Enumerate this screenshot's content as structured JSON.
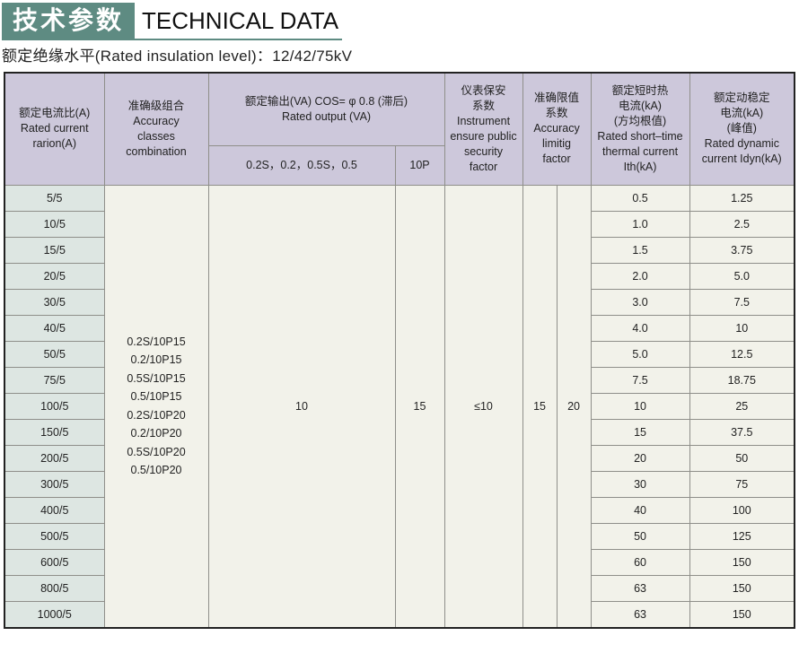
{
  "title": {
    "cn": "技术参数",
    "en": "TECHNICAL DATA"
  },
  "subtitle": "额定绝缘水平(Rated insulation level)：12/42/75kV",
  "colors": {
    "title_bg": "#5e8b82",
    "header_bg": "#cdc8db",
    "ratio_bg": "#dde6e2",
    "body_bg": "#f2f2ea"
  },
  "headers": {
    "ratio": [
      "额定电流比(A)",
      "Rated current",
      "rarion(A)"
    ],
    "accuracy": [
      "准确级组合",
      "Accuracy",
      "classes",
      "combination"
    ],
    "output": [
      "额定输出(VA) COS= φ 0.8 (滞后)",
      "Rated output (VA)"
    ],
    "output_sub1": "0.2S，0.2，0.5S，0.5",
    "output_sub2": "10P",
    "isf": [
      "仪表保安",
      "系数",
      "Instrument",
      "ensure public",
      "security",
      "factor"
    ],
    "alf": [
      "准确限值",
      "系数",
      "Accuracy",
      "limitig",
      "factor"
    ],
    "ith": [
      "额定短时热",
      "电流(kA)",
      "(方均根值)",
      "Rated short–time",
      "thermal current",
      "Ith(kA)"
    ],
    "idyn": [
      "额定动稳定",
      "电流(kA)",
      "(峰值)",
      "Rated dynamic",
      "current Idyn(kA)"
    ]
  },
  "merged": {
    "accuracy": [
      "0.2S/10P15",
      "0.2/10P15",
      "0.5S/10P15",
      "0.5/10P15",
      "0.2S/10P20",
      "0.2/10P20",
      "0.5S/10P20",
      "0.5/10P20"
    ],
    "output1": "10",
    "output2": "15",
    "isf": "≤10",
    "alf1": "15",
    "alf2": "20"
  },
  "rows": [
    {
      "ratio": "5/5",
      "ith": "0.5",
      "idyn": "1.25"
    },
    {
      "ratio": "10/5",
      "ith": "1.0",
      "idyn": "2.5"
    },
    {
      "ratio": "15/5",
      "ith": "1.5",
      "idyn": "3.75"
    },
    {
      "ratio": "20/5",
      "ith": "2.0",
      "idyn": "5.0"
    },
    {
      "ratio": "30/5",
      "ith": "3.0",
      "idyn": "7.5"
    },
    {
      "ratio": "40/5",
      "ith": "4.0",
      "idyn": "10"
    },
    {
      "ratio": "50/5",
      "ith": "5.0",
      "idyn": "12.5"
    },
    {
      "ratio": "75/5",
      "ith": "7.5",
      "idyn": "18.75"
    },
    {
      "ratio": "100/5",
      "ith": "10",
      "idyn": "25"
    },
    {
      "ratio": "150/5",
      "ith": "15",
      "idyn": "37.5"
    },
    {
      "ratio": "200/5",
      "ith": "20",
      "idyn": "50"
    },
    {
      "ratio": "300/5",
      "ith": "30",
      "idyn": "75"
    },
    {
      "ratio": "400/5",
      "ith": "40",
      "idyn": "100"
    },
    {
      "ratio": "500/5",
      "ith": "50",
      "idyn": "125"
    },
    {
      "ratio": "600/5",
      "ith": "60",
      "idyn": "150"
    },
    {
      "ratio": "800/5",
      "ith": "63",
      "idyn": "150"
    },
    {
      "ratio": "1000/5",
      "ith": "63",
      "idyn": "150"
    }
  ]
}
